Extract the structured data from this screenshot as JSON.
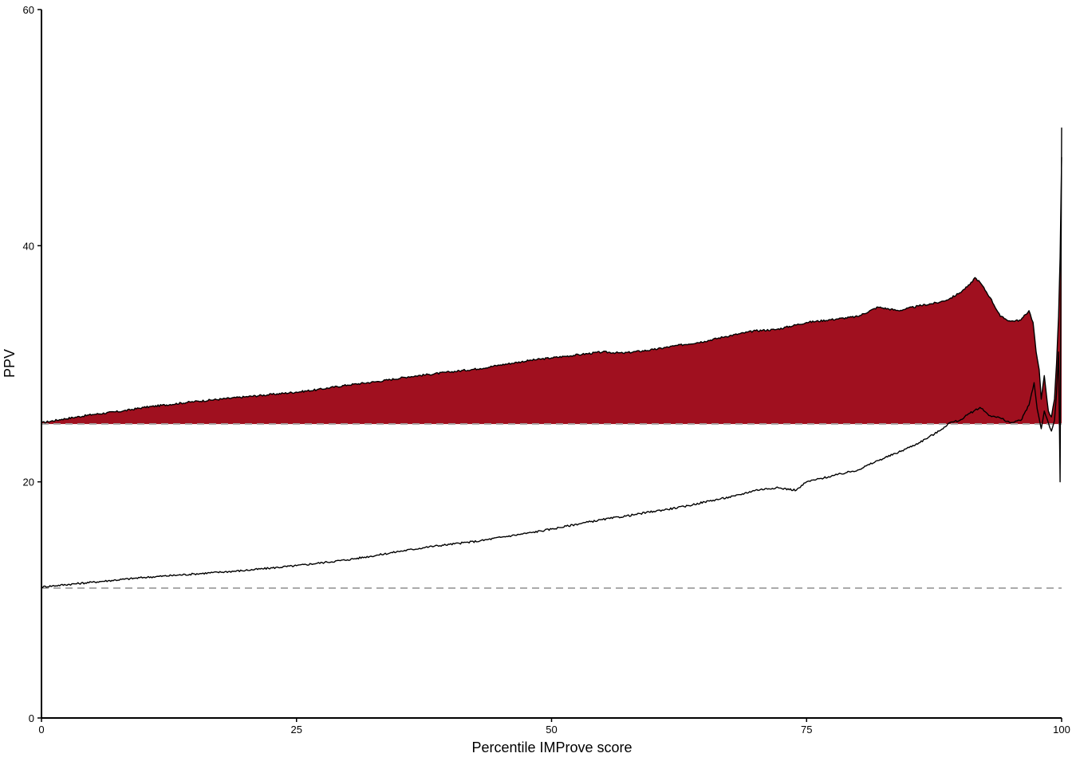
{
  "chart_data": {
    "type": "area",
    "xlabel": "Percentile IMProve score",
    "ylabel": "PPV",
    "xlim": [
      0,
      100
    ],
    "ylim": [
      0,
      60
    ],
    "x_ticks": [
      {
        "value": 0,
        "label": "0"
      },
      {
        "value": 25,
        "label": "25"
      },
      {
        "value": 50,
        "label": "50"
      },
      {
        "value": 75,
        "label": "75"
      },
      {
        "value": 100,
        "label": "100"
      }
    ],
    "y_ticks": [
      {
        "value": 0,
        "label": "0"
      },
      {
        "value": 20,
        "label": "20"
      },
      {
        "value": 40,
        "label": "40"
      },
      {
        "value": 60,
        "label": "60"
      }
    ],
    "grid": false,
    "legend": "none",
    "reference_lines": [
      {
        "y": 24.9,
        "style": "dashed",
        "color": "#aaaaaa"
      },
      {
        "y": 11.0,
        "style": "dashed",
        "color": "#aaaaaa"
      }
    ],
    "series": [
      {
        "fill": "#a0101f",
        "line_color": "#000000",
        "baseline": 24.9,
        "x": [
          0,
          2,
          5,
          8,
          10,
          15,
          20,
          25,
          27,
          30,
          33,
          36,
          38,
          40,
          43,
          45,
          48,
          50,
          53,
          55,
          57,
          60,
          62,
          65,
          67,
          70,
          72,
          75,
          78,
          80,
          82,
          84,
          86,
          88,
          89,
          90,
          91,
          91.5,
          92,
          93,
          94,
          95,
          96,
          96.8,
          97.2,
          97.5,
          97.8,
          98,
          98.3,
          98.7,
          99.0,
          99.3,
          99.5,
          99.7,
          99.85,
          100
        ],
        "y": [
          25.0,
          25.3,
          25.7,
          26.0,
          26.3,
          26.8,
          27.2,
          27.6,
          27.8,
          28.2,
          28.5,
          28.9,
          29.1,
          29.3,
          29.6,
          29.9,
          30.3,
          30.5,
          30.8,
          31.0,
          30.9,
          31.2,
          31.5,
          31.9,
          32.3,
          32.8,
          32.9,
          33.5,
          33.8,
          34.0,
          34.8,
          34.5,
          34.9,
          35.2,
          35.5,
          36.0,
          36.7,
          37.3,
          36.9,
          35.6,
          34.0,
          33.6,
          33.7,
          34.5,
          33.5,
          31.0,
          29.5,
          27.0,
          29.0,
          26.0,
          25.5,
          27.0,
          30.0,
          34.0,
          39.0,
          47.5
        ]
      },
      {
        "line_color": "#000000",
        "baseline": 11.0,
        "x": [
          0,
          5,
          10,
          15,
          20,
          25,
          28,
          30,
          33,
          35,
          38,
          40,
          43,
          45,
          48,
          50,
          53,
          55,
          58,
          60,
          63,
          65,
          68,
          70,
          72,
          74,
          75,
          78,
          80,
          82,
          84,
          86,
          88,
          89,
          90,
          91,
          92,
          93,
          94,
          95,
          96,
          96.8,
          97.3,
          97.6,
          98,
          98.3,
          98.7,
          99.0,
          99.3,
          99.5,
          99.7,
          99.85,
          100
        ],
        "y": [
          11.1,
          11.5,
          11.9,
          12.2,
          12.5,
          12.9,
          13.2,
          13.4,
          13.8,
          14.1,
          14.5,
          14.7,
          15.0,
          15.3,
          15.7,
          16.0,
          16.5,
          16.8,
          17.2,
          17.5,
          17.9,
          18.3,
          18.8,
          19.3,
          19.5,
          19.3,
          20.0,
          20.6,
          21.0,
          21.8,
          22.5,
          23.3,
          24.3,
          25.0,
          25.2,
          25.8,
          26.3,
          25.6,
          25.4,
          25.0,
          25.2,
          26.5,
          28.4,
          26.2,
          24.5,
          26.0,
          25.0,
          24.3,
          25.2,
          27.5,
          31.0,
          20.0,
          50.0
        ]
      }
    ]
  }
}
